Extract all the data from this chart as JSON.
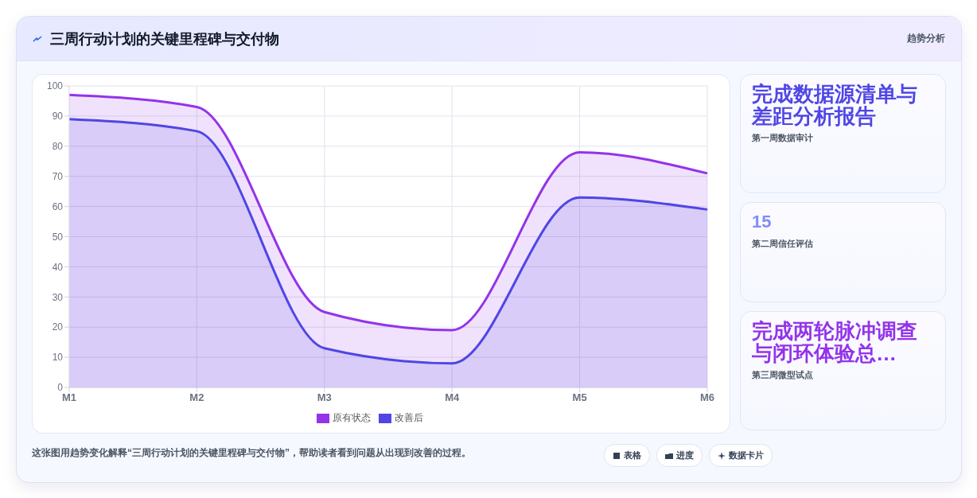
{
  "chart_data": [
    {
      "type": "area",
      "title": "三周行动计划的关键里程碑与交付物",
      "categories": [
        "M1",
        "M2",
        "M3",
        "M4",
        "M5",
        "M6"
      ],
      "series": [
        {
          "name": "原有状态",
          "color": "#9333ea",
          "values": [
            97,
            93,
            25,
            19,
            78,
            71
          ]
        },
        {
          "name": "改善后",
          "color": "#4f46e5",
          "values": [
            89,
            85,
            13,
            8,
            63,
            59
          ]
        }
      ],
      "ylim": [
        0,
        100
      ],
      "yticks": [
        0,
        10,
        20,
        30,
        40,
        50,
        60,
        70,
        80,
        90,
        100
      ],
      "grid": true,
      "legend": "bottom",
      "marker": "none",
      "line_style": "solid",
      "annotations": [
        "趋势分析",
        "这张图用趋势变化解释“三周行动计划的关键里程碑与交付物”，帮助读者看到问题从出现到改善的过程。",
        "表格",
        "进度",
        "数据卡片"
      ]
    },
    {
      "type": "other",
      "title": "完成数据源清单与差距分析报告",
      "subtitle": "第一周数据审计",
      "color": "#4f46e5"
    },
    {
      "type": "other",
      "title": "15",
      "subtitle": "第二周信任评估",
      "color": "#818cf8"
    },
    {
      "type": "other",
      "title": "完成两轮脉冲调查与闭环体验总…",
      "subtitle": "第三周微型试点",
      "color": "#9333ea"
    }
  ]
}
